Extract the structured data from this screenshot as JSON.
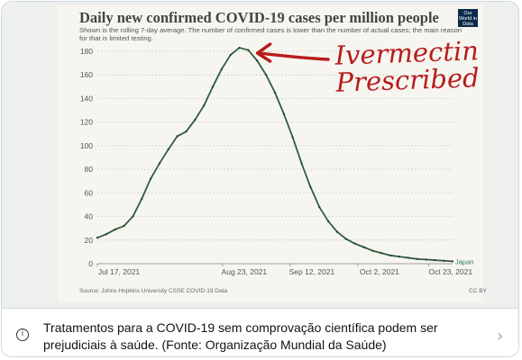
{
  "caption": {
    "icon": "info-icon",
    "text": "Tratamentos para a COVID-19 sem comprovação científica podem ser prejudiciais à saúde. (Fonte: Organização Mundial da Saúde)",
    "link_icon": "chevron-right-icon"
  },
  "media": {
    "annotation": {
      "line1": "Ivermectin",
      "line2": "Prescribed",
      "color": "#b71c1c"
    },
    "logo_text": "Our World in Data"
  },
  "chart_data": {
    "type": "line",
    "title": "Daily new confirmed COVID-19 cases per million people",
    "subtitle": "Shown is the rolling 7-day average. The number of confirmed cases is lower than the number of actual cases; the main reason for that is limited testing.",
    "source": "Source: Johns Hopkins University CSSE COVID-19 Data",
    "license": "CC BY",
    "ylim": [
      0,
      180
    ],
    "yticks": [
      0,
      20,
      40,
      60,
      80,
      100,
      120,
      140,
      160,
      180
    ],
    "xtick_labels": [
      "Jul 17, 2021",
      "Aug 23, 2021",
      "Sep 12, 2021",
      "Oct 2, 2021",
      "Oct 23, 2021"
    ],
    "grid": true,
    "series": [
      {
        "name": "Japan",
        "color": "#2e5e3e",
        "values": [
          22,
          25,
          29,
          32,
          40,
          55,
          72,
          85,
          97,
          108,
          112,
          122,
          134,
          150,
          165,
          177,
          183,
          181,
          172,
          160,
          145,
          127,
          107,
          85,
          65,
          48,
          36,
          27,
          21,
          17,
          14,
          11,
          9,
          7,
          6,
          5,
          4,
          3.5,
          3,
          2.5,
          2
        ]
      }
    ]
  }
}
